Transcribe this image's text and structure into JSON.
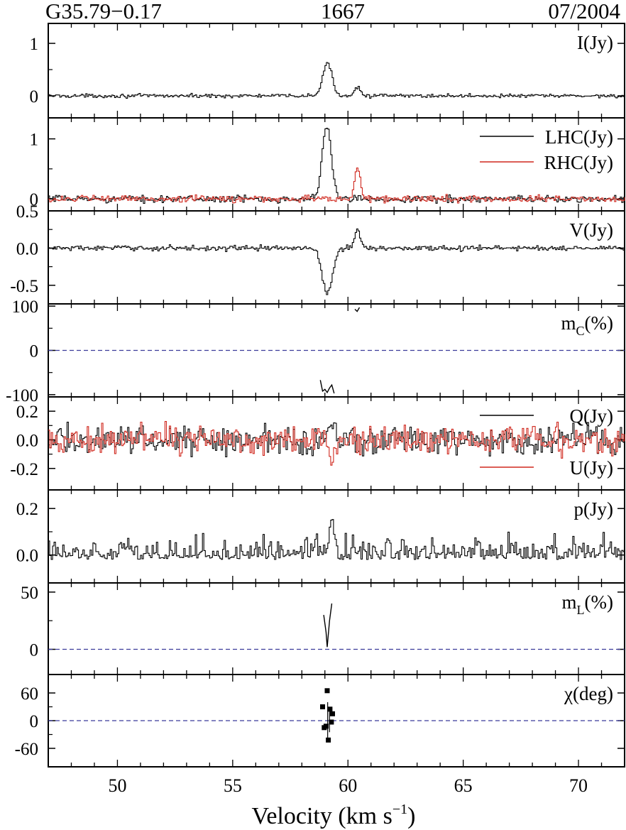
{
  "header": {
    "source": "G35.79−0.17",
    "frequency": "1667",
    "epoch": "07/2004"
  },
  "colors": {
    "black_trace": "#000000",
    "red_trace": "#d0281e",
    "zero_line": "#3b3b9a"
  },
  "chart_data": {
    "type": "line",
    "style": "step spectra, 8 vertically stacked panels sharing the x axis",
    "xlabel": "Velocity (km s",
    "xlabel_sup": "−1",
    "xlabel_close": ")",
    "xlim": [
      47,
      72
    ],
    "xticks": [
      50,
      55,
      60,
      65,
      70
    ],
    "panels": [
      {
        "id": "I",
        "label": "I(Jy)",
        "ylim": [
          -0.42,
          1.38
        ],
        "yticks": [
          {
            "v": 0,
            "label": "0"
          },
          {
            "v": 1,
            "label": "1"
          }
        ],
        "series": [
          {
            "name": "",
            "color": "#000000",
            "noise": 0.025,
            "features": [
              {
                "center": 59.08,
                "width": 0.2,
                "amp": 0.62
              },
              {
                "center": 60.38,
                "width": 0.13,
                "amp": 0.18
              }
            ]
          }
        ]
      },
      {
        "id": "LR",
        "label": "",
        "ylim": [
          -0.2,
          1.35
        ],
        "yticks": [
          {
            "v": 0,
            "label": "0"
          },
          {
            "v": 1,
            "label": "1"
          }
        ],
        "legend": [
          "LHC(Jy)",
          "RHC(Jy)"
        ],
        "legend_position": "top-right",
        "series": [
          {
            "name": "LHC(Jy)",
            "color": "#000000",
            "noise": 0.04,
            "features": [
              {
                "center": 59.05,
                "width": 0.2,
                "amp": 1.2
              }
            ]
          },
          {
            "name": "RHC(Jy)",
            "color": "#d0281e",
            "noise": 0.04,
            "features": [
              {
                "center": 60.38,
                "width": 0.13,
                "amp": 0.5
              }
            ]
          }
        ]
      },
      {
        "id": "V",
        "label": "V(Jy)",
        "ylim": [
          -0.75,
          0.5
        ],
        "yticks": [
          {
            "v": -0.5,
            "label": "-0.5"
          },
          {
            "v": 0,
            "label": "0.0"
          },
          {
            "v": 0.5,
            "label": "0.5"
          }
        ],
        "series": [
          {
            "name": "",
            "color": "#000000",
            "noise": 0.025,
            "features": [
              {
                "center": 59.08,
                "width": 0.22,
                "amp": -0.62
              },
              {
                "center": 60.38,
                "width": 0.13,
                "amp": 0.24
              }
            ]
          }
        ]
      },
      {
        "id": "mC",
        "label": "m",
        "label_sub": "C",
        "label_tail": "(%)",
        "ylim": [
          -105,
          105
        ],
        "yticks": [
          {
            "v": -100,
            "label": "-100"
          },
          {
            "v": 0,
            "label": "0"
          },
          {
            "v": 100,
            "label": "100"
          }
        ],
        "zero_line": true,
        "fragments": [
          {
            "x": [
              58.8,
              58.9,
              59.0,
              59.1,
              59.2,
              59.3,
              59.4
            ],
            "y": [
              -67,
              -92,
              -88,
              -95,
              -85,
              -78,
              -97
            ]
          },
          {
            "x": [
              60.3,
              60.4,
              60.5
            ],
            "y": [
              93,
              88,
              97
            ]
          }
        ]
      },
      {
        "id": "QU",
        "label": "",
        "ylim": [
          -0.35,
          0.3
        ],
        "yticks": [
          {
            "v": -0.2,
            "label": "-0.2"
          },
          {
            "v": 0,
            "label": "0.0"
          },
          {
            "v": 0.2,
            "label": "0.2"
          }
        ],
        "legend": [
          "Q(Jy)",
          "U(Jy)"
        ],
        "legend_position": "right",
        "series": [
          {
            "name": "Q(Jy)",
            "color": "#000000",
            "noise": 0.07,
            "features": [
              {
                "center": 59.2,
                "width": 0.1,
                "amp": 0.15
              }
            ]
          },
          {
            "name": "U(Jy)",
            "color": "#d0281e",
            "noise": 0.07,
            "features": [
              {
                "center": 59.25,
                "width": 0.1,
                "amp": -0.18
              }
            ]
          }
        ]
      },
      {
        "id": "p",
        "label": "p(Jy)",
        "ylim": [
          -0.12,
          0.28
        ],
        "yticks": [
          {
            "v": 0,
            "label": "0.0"
          },
          {
            "v": 0.2,
            "label": "0.2"
          }
        ],
        "series": [
          {
            "name": "",
            "color": "#000000",
            "noise": 0.04,
            "abs": true,
            "offset": 0.02,
            "features": [
              {
                "center": 59.25,
                "width": 0.12,
                "amp": 0.12
              }
            ]
          }
        ]
      },
      {
        "id": "mL",
        "label": "m",
        "label_sub": "L",
        "label_tail": "(%)",
        "ylim": [
          -22,
          58
        ],
        "yticks": [
          {
            "v": 0,
            "label": "0"
          },
          {
            "v": 50,
            "label": "50"
          }
        ],
        "zero_line": true,
        "fragments": [
          {
            "x": [
              58.95,
              59.05,
              59.1,
              59.2,
              59.3
            ],
            "y": [
              30,
              15,
              2,
              25,
              40
            ]
          }
        ]
      },
      {
        "id": "chi",
        "label": "χ(deg)",
        "ylim": [
          -100,
          100
        ],
        "yticks": [
          {
            "v": -60,
            "label": "-60"
          },
          {
            "v": 0,
            "label": "0"
          },
          {
            "v": 60,
            "label": "60"
          }
        ],
        "zero_line": true,
        "points": {
          "x": [
            58.9,
            58.97,
            59.05,
            59.1,
            59.15,
            59.22,
            59.28,
            59.33
          ],
          "y": [
            30,
            -15,
            -12,
            65,
            -42,
            25,
            -3,
            15
          ]
        }
      }
    ]
  }
}
